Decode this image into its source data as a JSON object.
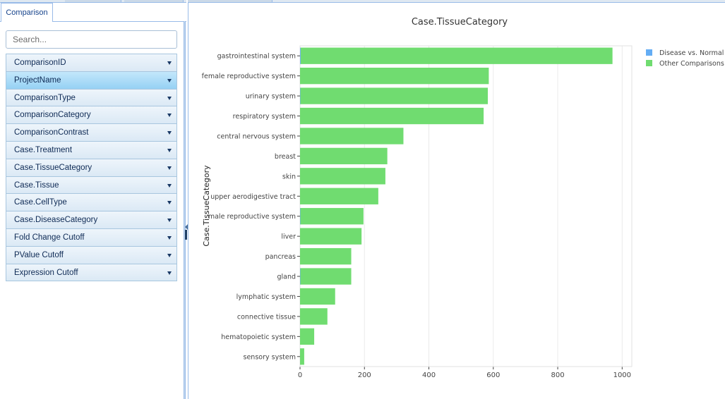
{
  "tabs": {
    "comparison_label": "Comparison"
  },
  "search": {
    "placeholder": "Search...",
    "value": ""
  },
  "fields": [
    {
      "label": "ComparisonID",
      "selected": false
    },
    {
      "label": "ProjectName",
      "selected": true
    },
    {
      "label": "ComparisonType",
      "selected": false
    },
    {
      "label": "ComparisonCategory",
      "selected": false
    },
    {
      "label": "ComparisonContrast",
      "selected": false
    },
    {
      "label": "Case.Treatment",
      "selected": false
    },
    {
      "label": "Case.TissueCategory",
      "selected": false
    },
    {
      "label": "Case.Tissue",
      "selected": false
    },
    {
      "label": "Case.CellType",
      "selected": false
    },
    {
      "label": "Case.DiseaseCategory",
      "selected": false
    },
    {
      "label": "Fold Change Cutoff",
      "selected": false
    },
    {
      "label": "PValue Cutoff",
      "selected": false
    },
    {
      "label": "Expression Cutoff",
      "selected": false
    }
  ],
  "colors": {
    "disease_vs_normal": "#64adf4",
    "other_comparisons": "#70dc70",
    "accent": "#99bbe8"
  },
  "chart_data": {
    "type": "bar",
    "orientation": "horizontal",
    "title": "Case.TissueCategory",
    "xlabel": "",
    "ylabel": "Case.TissueCategory",
    "xlim": [
      0,
      1030
    ],
    "xticks": [
      0,
      200,
      400,
      600,
      800,
      1000
    ],
    "categories": [
      "gastrointestinal system",
      "female reproductive system",
      "urinary system",
      "respiratory system",
      "central nervous system",
      "breast",
      "skin",
      "upper aerodigestive tract",
      "male reproductive system",
      "liver",
      "pancreas",
      "gland",
      "lymphatic system",
      "connective tissue",
      "hematopoietic system",
      "sensory system"
    ],
    "series": [
      {
        "name": "Disease vs. Normal",
        "values": [
          2,
          0,
          1,
          0,
          0,
          0,
          0,
          0,
          1,
          0,
          0,
          1,
          0,
          0,
          0,
          0
        ]
      },
      {
        "name": "Other Comparisons",
        "values": [
          968,
          586,
          582,
          570,
          321,
          271,
          265,
          243,
          196,
          191,
          159,
          158,
          109,
          85,
          44,
          13
        ]
      }
    ],
    "stacked": true,
    "legend_position": "top-right",
    "grid": true
  }
}
